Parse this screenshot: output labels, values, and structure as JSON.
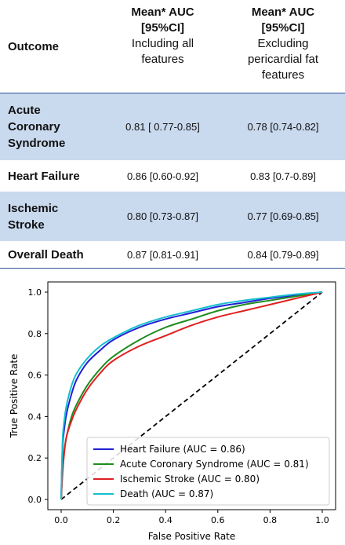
{
  "table": {
    "header": {
      "outcome": "Outcome",
      "col1_bold": [
        "Mean* AUC",
        "[95%CI]"
      ],
      "col1_sub": [
        "Including all",
        "features"
      ],
      "col2_bold": [
        "Mean* AUC",
        "[95%CI]"
      ],
      "col2_sub": [
        "Excluding",
        "pericardial fat",
        "features"
      ]
    },
    "rows": [
      {
        "outcome": [
          "Acute",
          "Coronary",
          "Syndrome"
        ],
        "incl": "0.81 [ 0.77-0.85]",
        "excl": "0.78 [0.74-0.82]"
      },
      {
        "outcome": [
          "Heart Failure"
        ],
        "incl": "0.86 [0.60-0.92]",
        "excl": "0.83 [0.7-0.89]"
      },
      {
        "outcome": [
          "Ischemic",
          "Stroke"
        ],
        "incl": "0.80 [0.73-0.87]",
        "excl": "0.77 [0.69-0.85]"
      },
      {
        "outcome": [
          "Overall Death"
        ],
        "incl": "0.87 [0.81-0.91]",
        "excl": "0.84 [0.79-0.89]"
      }
    ]
  },
  "chart_data": {
    "type": "line",
    "title": "",
    "xlabel": "False Positive Rate",
    "ylabel": "True Positive Rate",
    "xlim": [
      0.0,
      1.0
    ],
    "ylim": [
      0.0,
      1.0
    ],
    "xticks": [
      "0.0",
      "0.2",
      "0.4",
      "0.6",
      "0.8",
      "1.0"
    ],
    "yticks": [
      "0.0",
      "0.2",
      "0.4",
      "0.6",
      "0.8",
      "1.0"
    ],
    "grid": false,
    "legend_position": "lower-right",
    "series": [
      {
        "name": "Heart Failure (AUC = 0.86)",
        "color": "#1f1fd6",
        "x": [
          0,
          0.005,
          0.01,
          0.02,
          0.04,
          0.06,
          0.1,
          0.15,
          0.2,
          0.3,
          0.4,
          0.5,
          0.6,
          0.7,
          0.8,
          0.9,
          1.0
        ],
        "y": [
          0,
          0.24,
          0.32,
          0.41,
          0.51,
          0.58,
          0.66,
          0.72,
          0.77,
          0.83,
          0.87,
          0.9,
          0.93,
          0.95,
          0.97,
          0.985,
          1.0
        ]
      },
      {
        "name": "Acute Coronary Syndrome (AUC = 0.81)",
        "color": "#1e8c1e",
        "x": [
          0,
          0.005,
          0.01,
          0.02,
          0.04,
          0.06,
          0.1,
          0.15,
          0.2,
          0.3,
          0.4,
          0.5,
          0.6,
          0.7,
          0.8,
          0.9,
          1.0
        ],
        "y": [
          0,
          0.15,
          0.22,
          0.3,
          0.4,
          0.46,
          0.55,
          0.63,
          0.69,
          0.77,
          0.83,
          0.87,
          0.91,
          0.94,
          0.96,
          0.98,
          1.0
        ]
      },
      {
        "name": "Ischemic Stroke (AUC = 0.80)",
        "color": "#e02020",
        "x": [
          0,
          0.005,
          0.01,
          0.02,
          0.04,
          0.06,
          0.1,
          0.15,
          0.2,
          0.3,
          0.4,
          0.5,
          0.6,
          0.7,
          0.8,
          0.9,
          1.0
        ],
        "y": [
          0,
          0.12,
          0.2,
          0.3,
          0.38,
          0.44,
          0.53,
          0.61,
          0.67,
          0.74,
          0.79,
          0.84,
          0.88,
          0.91,
          0.94,
          0.97,
          1.0
        ]
      },
      {
        "name": "Death (AUC = 0.87)",
        "color": "#17becf",
        "x": [
          0,
          0.005,
          0.01,
          0.02,
          0.04,
          0.06,
          0.1,
          0.15,
          0.2,
          0.3,
          0.4,
          0.5,
          0.6,
          0.7,
          0.8,
          0.9,
          1.0
        ],
        "y": [
          0,
          0.27,
          0.36,
          0.45,
          0.55,
          0.61,
          0.68,
          0.74,
          0.78,
          0.84,
          0.88,
          0.91,
          0.94,
          0.96,
          0.975,
          0.99,
          1.0
        ]
      }
    ],
    "reference_line": {
      "x": [
        0,
        1
      ],
      "y": [
        0,
        1
      ],
      "color": "#000000",
      "style": "dashed"
    }
  }
}
